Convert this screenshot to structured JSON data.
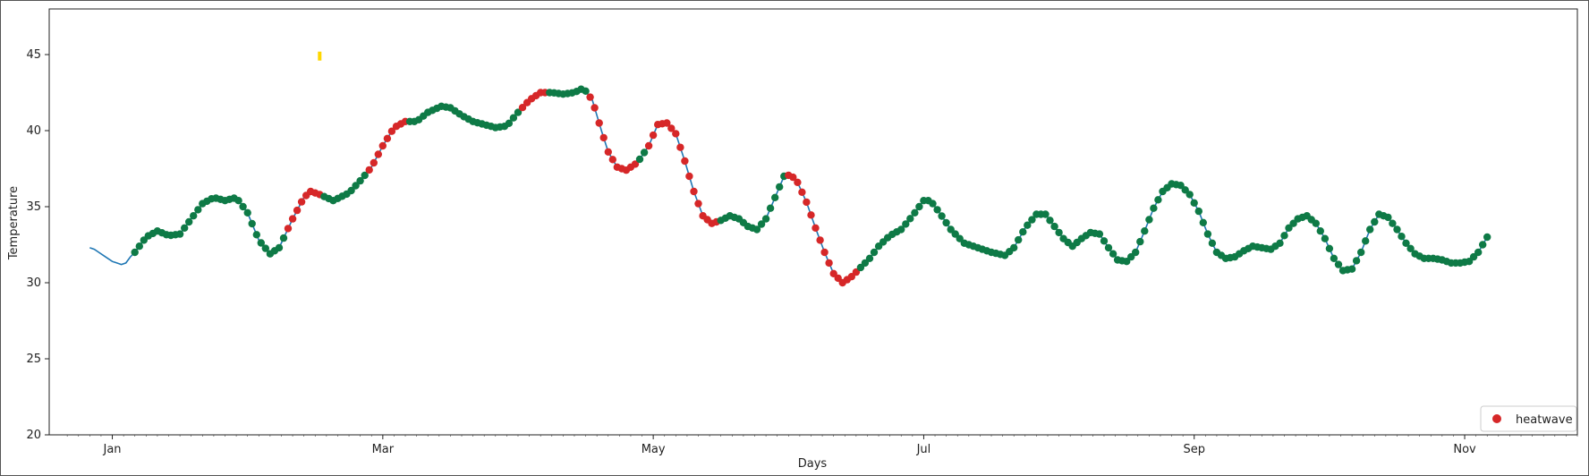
{
  "chart_data": {
    "type": "line",
    "title": "",
    "xlabel": "Days",
    "ylabel": "Temperature",
    "xlim": [
      -28,
      650
    ],
    "ylim": [
      20,
      48
    ],
    "x_ticks": [
      {
        "label": "Jan",
        "x": 0
      },
      {
        "label": "Mar",
        "x": 120
      },
      {
        "label": "May",
        "x": 240
      },
      {
        "label": "Jul",
        "x": 360
      },
      {
        "label": "Sep",
        "x": 480
      },
      {
        "label": "Nov",
        "x": 600
      }
    ],
    "y_ticks": [
      20,
      25,
      30,
      35,
      40,
      45
    ],
    "grid": false,
    "legend": {
      "entries": [
        "heatwave"
      ],
      "placement": "lower-right"
    },
    "colors": {
      "line": "#1f77b4",
      "heatwave": "#d62728",
      "normal": "#0e7a46",
      "annotation": "#ffd700"
    },
    "series": [
      {
        "type": "line",
        "points": [
          [
            -10,
            32.3
          ],
          [
            -8,
            32.2
          ],
          [
            -6,
            32.0
          ],
          [
            -4,
            31.8
          ],
          [
            -2,
            31.6
          ],
          [
            0,
            31.4
          ],
          [
            2,
            31.3
          ],
          [
            4,
            31.2
          ],
          [
            6,
            31.3
          ],
          [
            8,
            31.7
          ],
          [
            10,
            32.0
          ],
          [
            15,
            33.0
          ],
          [
            20,
            33.4
          ],
          [
            25,
            33.1
          ],
          [
            30,
            33.2
          ],
          [
            35,
            34.2
          ],
          [
            40,
            35.2
          ],
          [
            45,
            35.6
          ],
          [
            50,
            35.4
          ],
          [
            55,
            35.6
          ],
          [
            60,
            34.6
          ],
          [
            65,
            32.8
          ],
          [
            70,
            31.9
          ],
          [
            74,
            32.3
          ],
          [
            80,
            34.2
          ],
          [
            85,
            35.6
          ],
          [
            88,
            36.0
          ],
          [
            92,
            35.8
          ],
          [
            98,
            35.4
          ],
          [
            105,
            35.9
          ],
          [
            110,
            36.7
          ],
          [
            115,
            37.6
          ],
          [
            120,
            39.0
          ],
          [
            125,
            40.2
          ],
          [
            130,
            40.6
          ],
          [
            135,
            40.6
          ],
          [
            140,
            41.2
          ],
          [
            146,
            41.6
          ],
          [
            150,
            41.5
          ],
          [
            155,
            41.0
          ],
          [
            160,
            40.6
          ],
          [
            165,
            40.4
          ],
          [
            170,
            40.2
          ],
          [
            175,
            40.3
          ],
          [
            180,
            41.2
          ],
          [
            185,
            42.0
          ],
          [
            190,
            42.5
          ],
          [
            195,
            42.5
          ],
          [
            200,
            42.4
          ],
          [
            205,
            42.5
          ],
          [
            209,
            42.8
          ],
          [
            213,
            42.0
          ],
          [
            217,
            40.0
          ],
          [
            220,
            38.6
          ],
          [
            224,
            37.6
          ],
          [
            228,
            37.4
          ],
          [
            233,
            37.9
          ],
          [
            238,
            39.0
          ],
          [
            242,
            40.4
          ],
          [
            246,
            40.5
          ],
          [
            250,
            39.8
          ],
          [
            254,
            38.0
          ],
          [
            258,
            36.0
          ],
          [
            262,
            34.4
          ],
          [
            266,
            33.9
          ],
          [
            270,
            34.1
          ],
          [
            274,
            34.4
          ],
          [
            278,
            34.2
          ],
          [
            282,
            33.7
          ],
          [
            286,
            33.5
          ],
          [
            290,
            34.2
          ],
          [
            294,
            35.6
          ],
          [
            298,
            37.0
          ],
          [
            301,
            37.1
          ],
          [
            304,
            36.6
          ],
          [
            308,
            35.3
          ],
          [
            312,
            33.6
          ],
          [
            316,
            32.0
          ],
          [
            320,
            30.6
          ],
          [
            324,
            30.0
          ],
          [
            328,
            30.4
          ],
          [
            332,
            31.0
          ],
          [
            336,
            31.6
          ],
          [
            340,
            32.4
          ],
          [
            345,
            33.1
          ],
          [
            350,
            33.5
          ],
          [
            355,
            34.4
          ],
          [
            360,
            35.4
          ],
          [
            363,
            35.4
          ],
          [
            367,
            34.6
          ],
          [
            372,
            33.5
          ],
          [
            378,
            32.6
          ],
          [
            384,
            32.3
          ],
          [
            390,
            32.0
          ],
          [
            396,
            31.8
          ],
          [
            400,
            32.3
          ],
          [
            405,
            33.6
          ],
          [
            410,
            34.5
          ],
          [
            414,
            34.5
          ],
          [
            418,
            33.7
          ],
          [
            422,
            32.9
          ],
          [
            426,
            32.4
          ],
          [
            430,
            32.9
          ],
          [
            434,
            33.3
          ],
          [
            438,
            33.2
          ],
          [
            442,
            32.3
          ],
          [
            446,
            31.5
          ],
          [
            450,
            31.4
          ],
          [
            454,
            32.0
          ],
          [
            458,
            33.4
          ],
          [
            462,
            34.9
          ],
          [
            466,
            36.0
          ],
          [
            470,
            36.5
          ],
          [
            474,
            36.4
          ],
          [
            478,
            35.8
          ],
          [
            482,
            34.7
          ],
          [
            486,
            33.2
          ],
          [
            490,
            32.0
          ],
          [
            494,
            31.6
          ],
          [
            498,
            31.7
          ],
          [
            502,
            32.1
          ],
          [
            506,
            32.4
          ],
          [
            510,
            32.3
          ],
          [
            514,
            32.2
          ],
          [
            518,
            32.6
          ],
          [
            522,
            33.6
          ],
          [
            526,
            34.2
          ],
          [
            530,
            34.4
          ],
          [
            534,
            33.9
          ],
          [
            538,
            32.9
          ],
          [
            542,
            31.6
          ],
          [
            546,
            30.8
          ],
          [
            550,
            30.9
          ],
          [
            554,
            32.0
          ],
          [
            558,
            33.5
          ],
          [
            562,
            34.5
          ],
          [
            566,
            34.3
          ],
          [
            570,
            33.5
          ],
          [
            574,
            32.6
          ],
          [
            578,
            31.9
          ],
          [
            582,
            31.6
          ],
          [
            586,
            31.6
          ],
          [
            590,
            31.5
          ],
          [
            594,
            31.3
          ],
          [
            598,
            31.3
          ],
          [
            602,
            31.4
          ],
          [
            606,
            32.0
          ],
          [
            610,
            33.0
          ]
        ]
      },
      {
        "name": "heatwave",
        "type": "scatter",
        "marked_ranges": [
          [
            78,
            92
          ],
          [
            113,
            130
          ],
          [
            182,
            192
          ],
          [
            211,
            233
          ],
          [
            238,
            246
          ],
          [
            248,
            268
          ],
          [
            300,
            330
          ]
        ]
      }
    ],
    "annotations": [
      {
        "type": "marker",
        "x": 92,
        "y": 44.9,
        "color": "#ffd700"
      }
    ]
  }
}
